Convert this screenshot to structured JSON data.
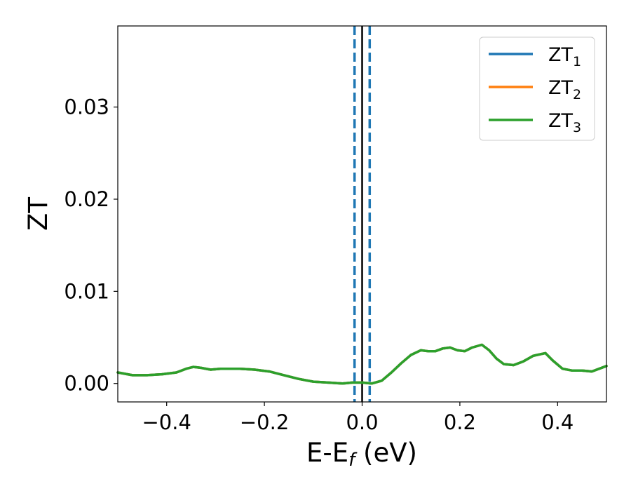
{
  "chart_data": {
    "type": "line",
    "xlabel": "E-E",
    "xlabel_sub": "f",
    "xlabel_unit": " (eV)",
    "ylabel": "ZT",
    "xlim": [
      -0.5,
      0.5
    ],
    "ylim": [
      -0.002,
      0.0388
    ],
    "xticks": [
      -0.4,
      -0.2,
      0.0,
      0.2,
      0.4
    ],
    "xtick_labels": [
      "−0.4",
      "−0.2",
      "0.0",
      "0.2",
      "0.4"
    ],
    "yticks": [
      0.0,
      0.01,
      0.02,
      0.03
    ],
    "ytick_labels": [
      "0.00",
      "0.01",
      "0.02",
      "0.03"
    ],
    "grid": false,
    "legend_position": "top-right",
    "x": [
      -0.5,
      -0.47,
      -0.44,
      -0.41,
      -0.38,
      -0.36,
      -0.345,
      -0.33,
      -0.31,
      -0.29,
      -0.27,
      -0.25,
      -0.22,
      -0.19,
      -0.16,
      -0.13,
      -0.1,
      -0.07,
      -0.04,
      -0.02,
      0.0,
      0.02,
      0.04,
      0.06,
      0.08,
      0.1,
      0.12,
      0.135,
      0.15,
      0.165,
      0.18,
      0.195,
      0.21,
      0.225,
      0.245,
      0.26,
      0.275,
      0.29,
      0.31,
      0.33,
      0.35,
      0.375,
      0.39,
      0.41,
      0.43,
      0.45,
      0.47,
      0.5
    ],
    "series": [
      {
        "name": "ZT",
        "name_sub": "1",
        "color": "#1f77b4",
        "y": [
          0.0012,
          0.0009,
          0.0009,
          0.001,
          0.0012,
          0.0016,
          0.0018,
          0.0017,
          0.0015,
          0.0016,
          0.0016,
          0.0016,
          0.0015,
          0.0013,
          0.0009,
          0.0005,
          0.0002,
          0.0001,
          0.0,
          0.0001,
          0.0001,
          0.0,
          0.0003,
          0.0012,
          0.0022,
          0.0031,
          0.0036,
          0.0035,
          0.0035,
          0.0038,
          0.0039,
          0.0036,
          0.0035,
          0.0039,
          0.0042,
          0.0036,
          0.0027,
          0.0021,
          0.002,
          0.0024,
          0.003,
          0.0033,
          0.0025,
          0.0016,
          0.0014,
          0.0014,
          0.0013,
          0.0019
        ]
      },
      {
        "name": "ZT",
        "name_sub": "2",
        "color": "#ff7f0e",
        "y": [
          0.0012,
          0.0009,
          0.0009,
          0.001,
          0.0012,
          0.0016,
          0.0018,
          0.0017,
          0.0015,
          0.0016,
          0.0016,
          0.0016,
          0.0015,
          0.0013,
          0.0009,
          0.0005,
          0.0002,
          0.0001,
          0.0,
          0.0001,
          0.0001,
          0.0,
          0.0003,
          0.0012,
          0.0022,
          0.0031,
          0.0036,
          0.0035,
          0.0035,
          0.0038,
          0.0039,
          0.0036,
          0.0035,
          0.0039,
          0.0042,
          0.0036,
          0.0027,
          0.0021,
          0.002,
          0.0024,
          0.003,
          0.0033,
          0.0025,
          0.0016,
          0.0014,
          0.0014,
          0.0013,
          0.0019
        ]
      },
      {
        "name": "ZT",
        "name_sub": "3",
        "color": "#2ca02c",
        "y": [
          0.0012,
          0.0009,
          0.0009,
          0.001,
          0.0012,
          0.0016,
          0.0018,
          0.0017,
          0.0015,
          0.0016,
          0.0016,
          0.0016,
          0.0015,
          0.0013,
          0.0009,
          0.0005,
          0.0002,
          0.0001,
          0.0,
          0.0001,
          0.0001,
          0.0,
          0.0003,
          0.0012,
          0.0022,
          0.0031,
          0.0036,
          0.0035,
          0.0035,
          0.0038,
          0.0039,
          0.0036,
          0.0035,
          0.0039,
          0.0042,
          0.0036,
          0.0027,
          0.0021,
          0.002,
          0.0024,
          0.003,
          0.0033,
          0.0025,
          0.0016,
          0.0014,
          0.0014,
          0.0013,
          0.0019
        ]
      }
    ],
    "vlines": [
      {
        "x": -0.0155,
        "color": "#1f77b4",
        "style": "dashed"
      },
      {
        "x": 0.0,
        "color": "#000000",
        "style": "solid"
      },
      {
        "x": 0.0155,
        "color": "#1f77b4",
        "style": "dashed"
      }
    ]
  }
}
